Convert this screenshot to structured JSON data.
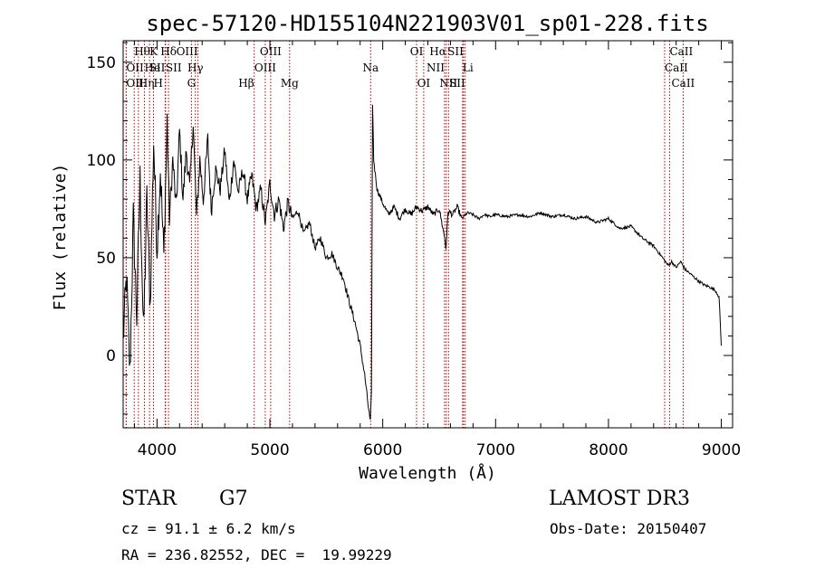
{
  "chart_data": {
    "type": "line",
    "title": "spec-57120-HD155104N221903V01_sp01-228.fits",
    "xlabel": "Wavelength (Å)",
    "ylabel": "Flux (relative)",
    "xlim": [
      3700,
      9100
    ],
    "ylim": [
      -37,
      161
    ],
    "x_ticks": [
      4000,
      5000,
      6000,
      7000,
      8000,
      9000
    ],
    "x_tick_labels": [
      "4000",
      "5000",
      "6000",
      "7000",
      "8000",
      "9000"
    ],
    "y_ticks": [
      0,
      50,
      100,
      150
    ],
    "y_tick_labels": [
      "0",
      "50",
      "100",
      "150"
    ],
    "series": [
      {
        "name": "Flux",
        "points": [
          [
            3700,
            8
          ],
          [
            3730,
            40
          ],
          [
            3760,
            -10
          ],
          [
            3790,
            70
          ],
          [
            3820,
            20
          ],
          [
            3850,
            90
          ],
          [
            3880,
            10
          ],
          [
            3910,
            80
          ],
          [
            3940,
            25
          ],
          [
            3970,
            110
          ],
          [
            4000,
            55
          ],
          [
            4030,
            95
          ],
          [
            4060,
            50
          ],
          [
            4090,
            120
          ],
          [
            4110,
            70
          ],
          [
            4140,
            100
          ],
          [
            4170,
            75
          ],
          [
            4200,
            115
          ],
          [
            4230,
            80
          ],
          [
            4260,
            105
          ],
          [
            4290,
            85
          ],
          [
            4320,
            120
          ],
          [
            4350,
            70
          ],
          [
            4380,
            100
          ],
          [
            4410,
            80
          ],
          [
            4450,
            110
          ],
          [
            4480,
            75
          ],
          [
            4520,
            95
          ],
          [
            4560,
            85
          ],
          [
            4600,
            105
          ],
          [
            4640,
            78
          ],
          [
            4680,
            100
          ],
          [
            4720,
            83
          ],
          [
            4760,
            95
          ],
          [
            4800,
            80
          ],
          [
            4840,
            92
          ],
          [
            4880,
            75
          ],
          [
            4920,
            85
          ],
          [
            4960,
            68
          ],
          [
            5000,
            88
          ],
          [
            5040,
            72
          ],
          [
            5080,
            80
          ],
          [
            5120,
            65
          ],
          [
            5160,
            78
          ],
          [
            5200,
            70
          ],
          [
            5250,
            74
          ],
          [
            5300,
            62
          ],
          [
            5350,
            68
          ],
          [
            5400,
            55
          ],
          [
            5450,
            60
          ],
          [
            5500,
            50
          ],
          [
            5550,
            52
          ],
          [
            5600,
            45
          ],
          [
            5650,
            40
          ],
          [
            5700,
            28
          ],
          [
            5750,
            18
          ],
          [
            5800,
            5
          ],
          [
            5840,
            -10
          ],
          [
            5870,
            -25
          ],
          [
            5890,
            -34
          ],
          [
            5900,
            -20
          ],
          [
            5910,
            128
          ],
          [
            5920,
            100
          ],
          [
            5950,
            85
          ],
          [
            6000,
            78
          ],
          [
            6050,
            72
          ],
          [
            6100,
            76
          ],
          [
            6150,
            70
          ],
          [
            6200,
            75
          ],
          [
            6250,
            72
          ],
          [
            6300,
            76
          ],
          [
            6350,
            74
          ],
          [
            6400,
            76
          ],
          [
            6450,
            72
          ],
          [
            6500,
            75
          ],
          [
            6550,
            60
          ],
          [
            6560,
            55
          ],
          [
            6580,
            74
          ],
          [
            6620,
            72
          ],
          [
            6660,
            76
          ],
          [
            6700,
            70
          ],
          [
            6750,
            73
          ],
          [
            6800,
            72
          ],
          [
            6850,
            70
          ],
          [
            6900,
            72
          ],
          [
            6950,
            71
          ],
          [
            7000,
            72
          ],
          [
            7100,
            71
          ],
          [
            7200,
            72
          ],
          [
            7300,
            71
          ],
          [
            7400,
            73
          ],
          [
            7500,
            71
          ],
          [
            7600,
            72
          ],
          [
            7700,
            70
          ],
          [
            7800,
            71
          ],
          [
            7900,
            68
          ],
          [
            8000,
            70
          ],
          [
            8100,
            65
          ],
          [
            8200,
            66
          ],
          [
            8300,
            60
          ],
          [
            8400,
            56
          ],
          [
            8480,
            50
          ],
          [
            8530,
            46
          ],
          [
            8560,
            48
          ],
          [
            8600,
            45
          ],
          [
            8640,
            48
          ],
          [
            8680,
            44
          ],
          [
            8720,
            42
          ],
          [
            8760,
            40
          ],
          [
            8800,
            38
          ],
          [
            8850,
            36
          ],
          [
            8900,
            35
          ],
          [
            8950,
            33
          ],
          [
            8980,
            30
          ],
          [
            9000,
            5
          ]
        ]
      }
    ],
    "lines": [
      {
        "label": "Hθ",
        "x": 3798,
        "row": 0,
        "align": "start"
      },
      {
        "label": "K",
        "x": 3934,
        "row": 0,
        "align": "start"
      },
      {
        "label": "Hδ",
        "x": 4102,
        "row": 0,
        "align": "middle"
      },
      {
        "label": "OIII",
        "x": 4363,
        "row": 0,
        "align": "end"
      },
      {
        "label": "OIII",
        "x": 5007,
        "row": 0,
        "align": "middle"
      },
      {
        "label": "OI",
        "x": 6300,
        "row": 0,
        "align": "middle"
      },
      {
        "label": "Hα",
        "x": 6563,
        "row": 0,
        "align": "end"
      },
      {
        "label": "SII",
        "x": 6716,
        "row": 0,
        "align": "end"
      },
      {
        "label": "CaII",
        "x": 8542,
        "row": 0,
        "align": "start"
      },
      {
        "label": "OII",
        "x": 3727,
        "row": 1,
        "align": "start"
      },
      {
        "label": "He",
        "x": 3889,
        "row": 1,
        "align": "start"
      },
      {
        "label": "SII",
        "x": 4072,
        "row": 1,
        "align": "end"
      },
      {
        "label": "SII",
        "x": 4076,
        "row": 1,
        "align": "start"
      },
      {
        "label": "Hγ",
        "x": 4340,
        "row": 1,
        "align": "middle"
      },
      {
        "label": "OIII",
        "x": 4959,
        "row": 1,
        "align": "middle"
      },
      {
        "label": "Na",
        "x": 5893,
        "row": 1,
        "align": "middle"
      },
      {
        "label": "NII",
        "x": 6548,
        "row": 1,
        "align": "end"
      },
      {
        "label": "Li",
        "x": 6708,
        "row": 1,
        "align": "start"
      },
      {
        "label": "CaII",
        "x": 8498,
        "row": 1,
        "align": "start"
      },
      {
        "label": "OII",
        "x": 3727,
        "row": 2,
        "align": "start"
      },
      {
        "label": "Hη",
        "x": 3835,
        "row": 2,
        "align": "start"
      },
      {
        "label": "H",
        "x": 3969,
        "row": 2,
        "align": "start"
      },
      {
        "label": "G",
        "x": 4305,
        "row": 2,
        "align": "middle"
      },
      {
        "label": "Hβ",
        "x": 4861,
        "row": 2,
        "align": "end"
      },
      {
        "label": "Mg",
        "x": 5175,
        "row": 2,
        "align": "middle"
      },
      {
        "label": "OI",
        "x": 6363,
        "row": 2,
        "align": "middle"
      },
      {
        "label": "NII",
        "x": 6583,
        "row": 2,
        "align": "middle"
      },
      {
        "label": "SII",
        "x": 6731,
        "row": 2,
        "align": "end"
      },
      {
        "label": "CaII",
        "x": 8662,
        "row": 2,
        "align": "middle"
      }
    ]
  },
  "info": {
    "object_class": "STAR",
    "subclass": "G7",
    "redshift": "cz = 91.1 ± 6.2 km/s",
    "coords": "RA = 236.82552, DEC =  19.99229",
    "survey": "LAMOST DR3",
    "obs_date": "Obs-Date: 20150407"
  }
}
